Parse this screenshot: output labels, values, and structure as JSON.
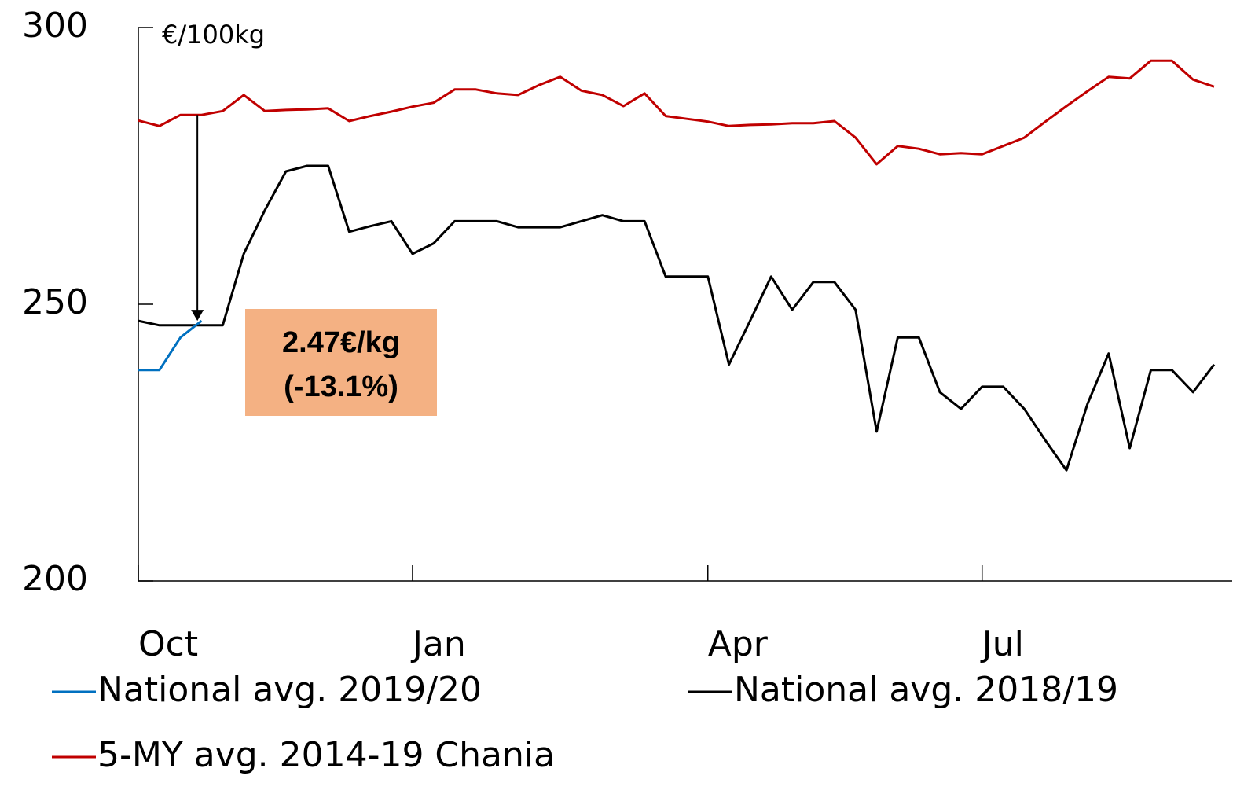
{
  "chart_data": {
    "type": "line",
    "unit_label": "€/100kg",
    "annotation": [
      "2.47€/kg",
      "(-13.1%)"
    ],
    "categories": [
      "Oct",
      null,
      null,
      null,
      null,
      null,
      null,
      null,
      null,
      null,
      null,
      null,
      null,
      "Jan",
      null,
      null,
      null,
      null,
      null,
      null,
      null,
      null,
      null,
      null,
      null,
      null,
      null,
      "Apr",
      null,
      null,
      null,
      null,
      null,
      null,
      null,
      null,
      null,
      null,
      null,
      null,
      "Jul",
      null,
      null,
      null,
      null,
      null,
      null,
      null,
      null,
      null,
      null,
      null
    ],
    "series": [
      {
        "name": "National avg. 2019/20",
        "color": "#0070c0",
        "values": [
          238.1,
          238.1,
          244,
          247,
          null,
          null,
          null,
          null,
          null,
          null,
          null,
          null,
          null,
          null,
          null,
          null,
          null,
          null,
          null,
          null,
          null,
          null,
          null,
          null,
          null,
          null,
          null,
          null,
          null,
          null,
          null,
          null,
          null,
          null,
          null,
          null,
          null,
          null,
          null,
          null,
          null,
          null,
          null,
          null,
          null,
          null,
          null,
          null,
          null,
          null,
          null,
          null
        ]
      },
      {
        "name": "National avg. 2018/19",
        "color": "#000000",
        "values": [
          247,
          246.2,
          246.2,
          246.2,
          246.2,
          259.1,
          267,
          274,
          275,
          275,
          263.1,
          264.1,
          265,
          259.1,
          261,
          265,
          265,
          265,
          263.9,
          263.9,
          263.9,
          265,
          266.1,
          265,
          265,
          255,
          255,
          255,
          239.1,
          247,
          255,
          249,
          254,
          254,
          249,
          227,
          244,
          244,
          234.1,
          231.1,
          235.1,
          235.1,
          231.1,
          225.4,
          220,
          232,
          241.1,
          224,
          238.1,
          238.1,
          234.1,
          239.1
        ]
      },
      {
        "name": "5-MY avg. 2014-19 Chania",
        "color": "#c00000",
        "values": [
          283.2,
          282.2,
          284.2,
          284.2,
          284.9,
          287.8,
          284.9,
          285.1,
          285.2,
          285.4,
          283.1,
          284,
          284.8,
          285.7,
          286.4,
          288.8,
          288.8,
          288.1,
          287.8,
          289.6,
          291.1,
          288.6,
          287.8,
          285.8,
          288.1,
          284,
          283.5,
          283,
          282.2,
          282.4,
          282.5,
          282.7,
          282.7,
          283.1,
          280.1,
          275.3,
          278.6,
          278.1,
          277.1,
          277.3,
          277.1,
          278.6,
          280.1,
          283,
          285.8,
          288.5,
          291.1,
          290.8,
          294,
          294,
          290.6,
          289.3
        ]
      }
    ],
    "ylim": [
      200,
      300
    ],
    "yticks": [
      200,
      250,
      300
    ],
    "grid": false
  }
}
